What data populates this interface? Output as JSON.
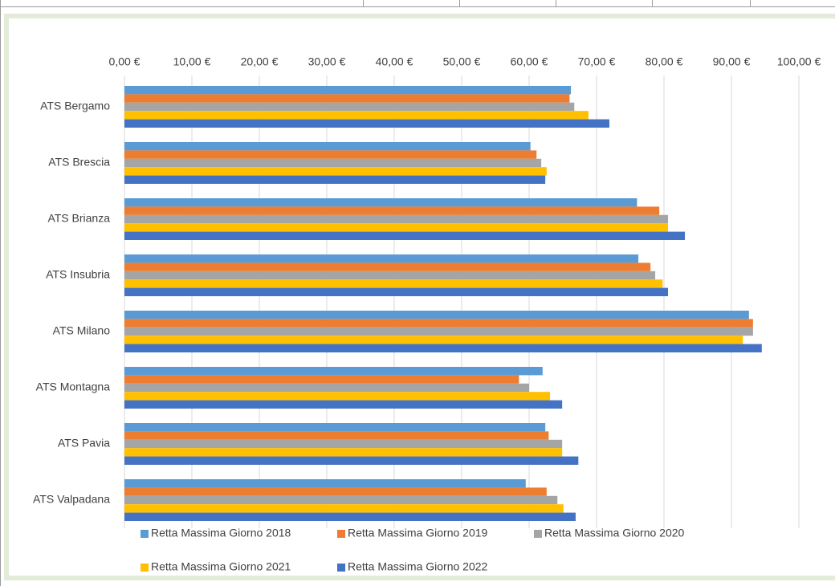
{
  "chart_data": {
    "type": "bar",
    "orientation": "horizontal",
    "categories": [
      "ATS Bergamo",
      "ATS Brescia",
      "ATS Brianza",
      "ATS Insubria",
      "ATS Milano",
      "ATS Montagna",
      "ATS Pavia",
      "ATS Valpadana"
    ],
    "series": [
      {
        "name": "Retta Massima Giorno 2018",
        "color": "#5b9bd5",
        "values": [
          66.2,
          60.2,
          76.0,
          76.2,
          92.6,
          62.0,
          62.4,
          59.5
        ]
      },
      {
        "name": "Retta Massima Giorno 2019",
        "color": "#ed7d31",
        "values": [
          66.0,
          61.1,
          79.3,
          78.0,
          93.2,
          58.5,
          62.9,
          62.6
        ]
      },
      {
        "name": "Retta Massima Giorno 2020",
        "color": "#a5a5a5",
        "values": [
          66.7,
          61.8,
          80.6,
          78.7,
          93.2,
          60.0,
          64.9,
          64.2
        ]
      },
      {
        "name": "Retta Massima Giorno 2021",
        "color": "#ffc000",
        "values": [
          68.8,
          62.6,
          80.6,
          79.8,
          91.7,
          63.1,
          64.9,
          65.1
        ]
      },
      {
        "name": "Retta Massima Giorno 2022",
        "color": "#4472c4",
        "values": [
          71.9,
          62.4,
          83.1,
          80.6,
          94.5,
          64.9,
          67.3,
          66.9
        ]
      }
    ],
    "xlim": [
      0,
      100
    ],
    "xticks": [
      {
        "value": 0,
        "label": "0,00 €"
      },
      {
        "value": 10,
        "label": "10,00 €"
      },
      {
        "value": 20,
        "label": "20,00 €"
      },
      {
        "value": 30,
        "label": "30,00 €"
      },
      {
        "value": 40,
        "label": "40,00 €"
      },
      {
        "value": 50,
        "label": "50,00 €"
      },
      {
        "value": 60,
        "label": "60,00 €"
      },
      {
        "value": 70,
        "label": "70,00 €"
      },
      {
        "value": 80,
        "label": "80,00 €"
      },
      {
        "value": 90,
        "label": "90,00 €"
      },
      {
        "value": 100,
        "label": "100,00 €"
      }
    ],
    "grid": true,
    "legend": "bottom"
  }
}
